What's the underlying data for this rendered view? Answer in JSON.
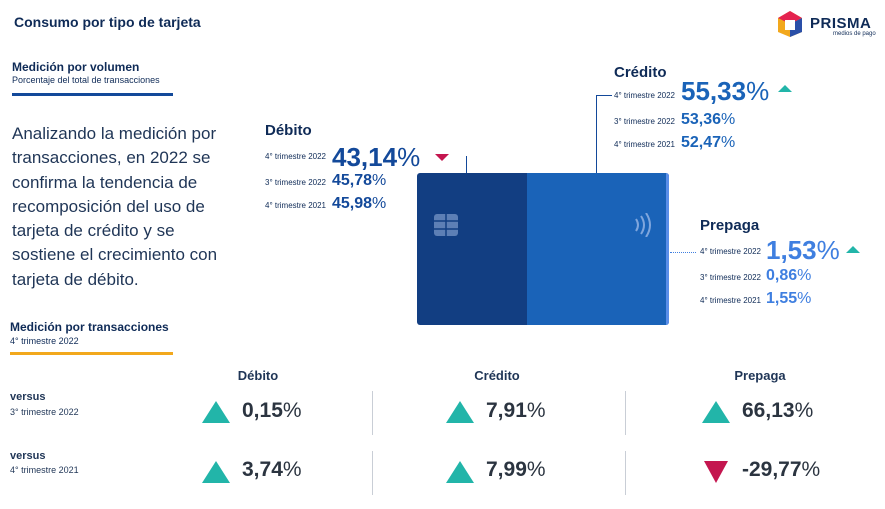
{
  "header": {
    "title": "Consumo por tipo de tarjeta",
    "logo_name": "PRISMA",
    "logo_tagline": "medios de pago"
  },
  "volume_section": {
    "title": "Medición por volumen",
    "subtitle": "Porcentaje del total de transacciones"
  },
  "paragraph": "Analizando la medición por transacciones, en 2022 se confirma la tendencia de recomposición del uso de tarjeta de crédito y se sostiene el crecimiento con tarjeta de débito.",
  "debito": {
    "title": "Débito",
    "rows": [
      {
        "label": "4° trimestre 2022",
        "value": "43,14",
        "unit": "%",
        "trend": "down"
      },
      {
        "label": "3° trimestre 2022",
        "value": "45,78",
        "unit": "%"
      },
      {
        "label": "4° trimestre 2021",
        "value": "45,98",
        "unit": "%"
      }
    ]
  },
  "credito": {
    "title": "Crédito",
    "rows": [
      {
        "label": "4° trimestre 2022",
        "value": "55,33",
        "unit": "%",
        "trend": "up"
      },
      {
        "label": "3° trimestre 2022",
        "value": "53,36",
        "unit": "%"
      },
      {
        "label": "4° trimestre 2021",
        "value": "52,47",
        "unit": "%"
      }
    ]
  },
  "prepaga": {
    "title": "Prepaga",
    "rows": [
      {
        "label": "4° trimestre 2022",
        "value": "1,53",
        "unit": "%",
        "trend": "up"
      },
      {
        "label": "3° trimestre 2022",
        "value": "0,86",
        "unit": "%"
      },
      {
        "label": "4° trimestre 2021",
        "value": "1,55",
        "unit": "%"
      }
    ]
  },
  "transactions_section": {
    "title": "Medición por transacciones",
    "subtitle": "4° trimestre 2022"
  },
  "comparison": {
    "columns": [
      "Débito",
      "Crédito",
      "Prepaga"
    ],
    "rows": [
      {
        "label": "versus",
        "sublabel": "3° trimestre 2022",
        "cells": [
          {
            "value": "0,15",
            "unit": "%",
            "trend": "up"
          },
          {
            "value": "7,91",
            "unit": "%",
            "trend": "up"
          },
          {
            "value": "66,13",
            "unit": "%",
            "trend": "up"
          }
        ]
      },
      {
        "label": "versus",
        "sublabel": "4° trimestre 2021",
        "cells": [
          {
            "value": "3,74",
            "unit": "%",
            "trend": "up"
          },
          {
            "value": "7,99",
            "unit": "%",
            "trend": "up"
          },
          {
            "value": "-29,77",
            "unit": "%",
            "trend": "down"
          }
        ]
      }
    ]
  },
  "colors": {
    "navy": "#0f2b57",
    "debito_blue": "#13499a",
    "credito_blue": "#1a63b8",
    "prepaga_blue": "#3f7fe0",
    "up_teal": "#22b5a9",
    "down_red": "#c4164f",
    "accent_yellow": "#f2a81d"
  }
}
